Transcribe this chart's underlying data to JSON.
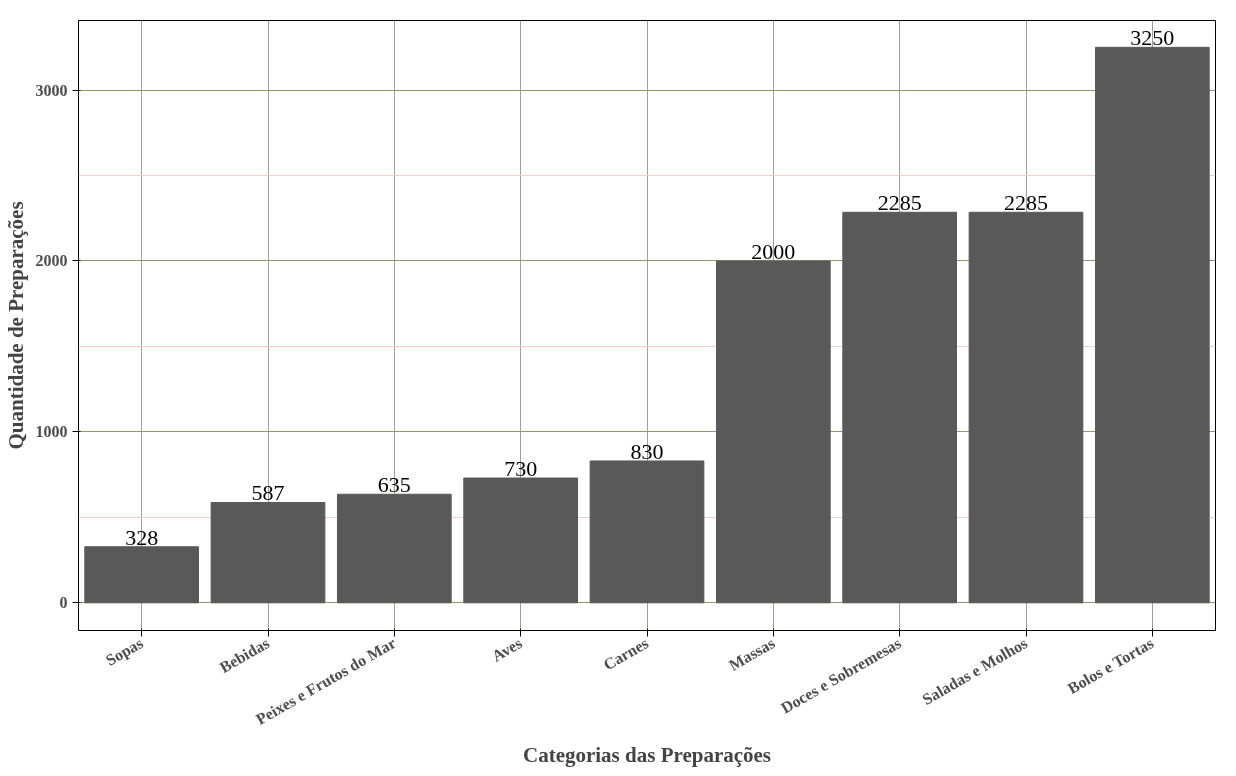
{
  "chart_data": {
    "type": "bar",
    "xlabel": "Categorias das Preparações",
    "ylabel": "Quantidade de Preparações",
    "categories": [
      "Sopas",
      "Bebidas",
      "Peixes e Frutos do Mar",
      "Aves",
      "Carnes",
      "Massas",
      "Doces e Sobremesas",
      "Saladas e Molhos",
      "Bolos e Tortas"
    ],
    "values": [
      328,
      587,
      635,
      730,
      830,
      2000,
      2285,
      2285,
      3250
    ],
    "color": "#595959",
    "ylim": [
      -162,
      3407
    ],
    "yticks": [
      0,
      {
        "value": 500,
        "label": null
      },
      1000,
      {
        "value": 1500,
        "label": null
      },
      2000,
      {
        "value": 2500,
        "label": null
      },
      3000
    ],
    "grid": true,
    "data_labels": true
  }
}
